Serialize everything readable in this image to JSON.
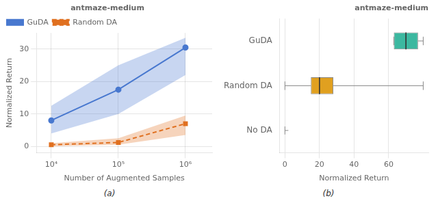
{
  "chart_data": [
    {
      "type": "line",
      "title": "antmaze-medium",
      "x_label": "Number of Augmented Samples",
      "y_label": "Normalized Return",
      "caption": "(a)",
      "x": [
        10000,
        100000,
        1000000
      ],
      "series": [
        {
          "name": "GuDA",
          "color": "#4878cf",
          "marker": "circle",
          "line_style": "solid",
          "values": [
            8.0,
            17.5,
            30.5
          ],
          "lower": [
            4.0,
            10.0,
            22.0
          ],
          "upper": [
            12.5,
            25.0,
            33.5
          ]
        },
        {
          "name": "Random DA",
          "color": "#e07020",
          "marker": "square",
          "line_style": "dashed",
          "values": [
            0.5,
            1.2,
            7.0
          ],
          "lower": [
            0.0,
            0.5,
            3.5
          ],
          "upper": [
            1.0,
            2.5,
            9.5
          ]
        }
      ],
      "log": "x",
      "xlim": [
        6000,
        2500000
      ],
      "xticks": [
        {
          "value": 10000,
          "label": "10⁴"
        },
        {
          "value": 100000,
          "label": "10⁵"
        },
        {
          "value": 1000000,
          "label": "10⁶"
        }
      ],
      "ylim": [
        -2,
        35
      ],
      "yticks": [
        0,
        10,
        20,
        30
      ],
      "grid": true,
      "legend": "upper left"
    },
    {
      "type": "box",
      "orientation": "horizontal",
      "title": "antmaze-medium",
      "x_label": "Normalized Return",
      "caption": "(b)",
      "categories": [
        "GuDA",
        "Random DA",
        "No DA"
      ],
      "boxes": [
        {
          "q1": 63.0,
          "median": 70.0,
          "q3": 77.0,
          "whisker_low": 63.0,
          "whisker_high": 80.0,
          "color": "#3cb8a0"
        },
        {
          "q1": 15.0,
          "median": 20.0,
          "q3": 28.0,
          "whisker_low": 0.0,
          "whisker_high": 80.0,
          "color": "#e0a020"
        },
        {
          "whisker_low": 0.0,
          "whisker_high": 2.0
        }
      ],
      "xlim": [
        -3,
        83
      ],
      "xticks": [
        0,
        20,
        40,
        60
      ],
      "grid": "x"
    }
  ]
}
